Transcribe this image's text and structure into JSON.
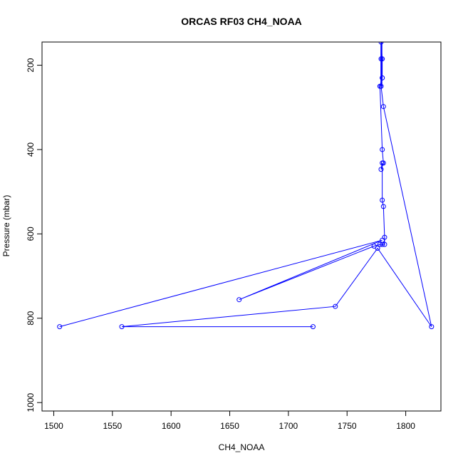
{
  "chart_data": {
    "type": "scatter",
    "title": "ORCAS RF03 CH4_NOAA",
    "xlabel": "CH4_NOAA",
    "ylabel": "Pressure (mbar)",
    "xlim": [
      1490,
      1830
    ],
    "ylim": [
      1020,
      145
    ],
    "y_axis_inverted": true,
    "x_ticks": [
      {
        "value": 1500,
        "label": "1500"
      },
      {
        "value": 1550,
        "label": "1550"
      },
      {
        "value": 1600,
        "label": "1600"
      },
      {
        "value": 1650,
        "label": "1650"
      },
      {
        "value": 1700,
        "label": "1700"
      },
      {
        "value": 1750,
        "label": "1750"
      },
      {
        "value": 1800,
        "label": "1800"
      }
    ],
    "y_ticks": [
      {
        "value": 200,
        "label": "200"
      },
      {
        "value": 400,
        "label": "400"
      },
      {
        "value": 600,
        "label": "600"
      },
      {
        "value": 800,
        "label": "800"
      },
      {
        "value": 1000,
        "label": "1000"
      }
    ],
    "grid": false,
    "legend": "none",
    "series_color": "#0000ff",
    "series": [
      {
        "style": "line+open-circle",
        "points": [
          {
            "x": 1721,
            "y": 820
          },
          {
            "x": 1558,
            "y": 820
          },
          {
            "x": 1740,
            "y": 772
          },
          {
            "x": 1776,
            "y": 634
          },
          {
            "x": 1822,
            "y": 820
          },
          {
            "x": 1781,
            "y": 298
          },
          {
            "x": 1779,
            "y": 250
          },
          {
            "x": 1780,
            "y": 230
          },
          {
            "x": 1779,
            "y": 185
          },
          {
            "x": 1779,
            "y": 145
          },
          {
            "x": 1780,
            "y": 185
          },
          {
            "x": 1780,
            "y": 230
          },
          {
            "x": 1778,
            "y": 250
          },
          {
            "x": 1780,
            "y": 400
          },
          {
            "x": 1781,
            "y": 432
          },
          {
            "x": 1779,
            "y": 447
          },
          {
            "x": 1780,
            "y": 432
          },
          {
            "x": 1780,
            "y": 520
          },
          {
            "x": 1781,
            "y": 535
          },
          {
            "x": 1782,
            "y": 608
          },
          {
            "x": 1782,
            "y": 625
          },
          {
            "x": 1780,
            "y": 625
          },
          {
            "x": 1778,
            "y": 625
          },
          {
            "x": 1773,
            "y": 629
          },
          {
            "x": 1658,
            "y": 756
          },
          {
            "x": 1780,
            "y": 615
          },
          {
            "x": 1505,
            "y": 820
          }
        ]
      }
    ]
  }
}
